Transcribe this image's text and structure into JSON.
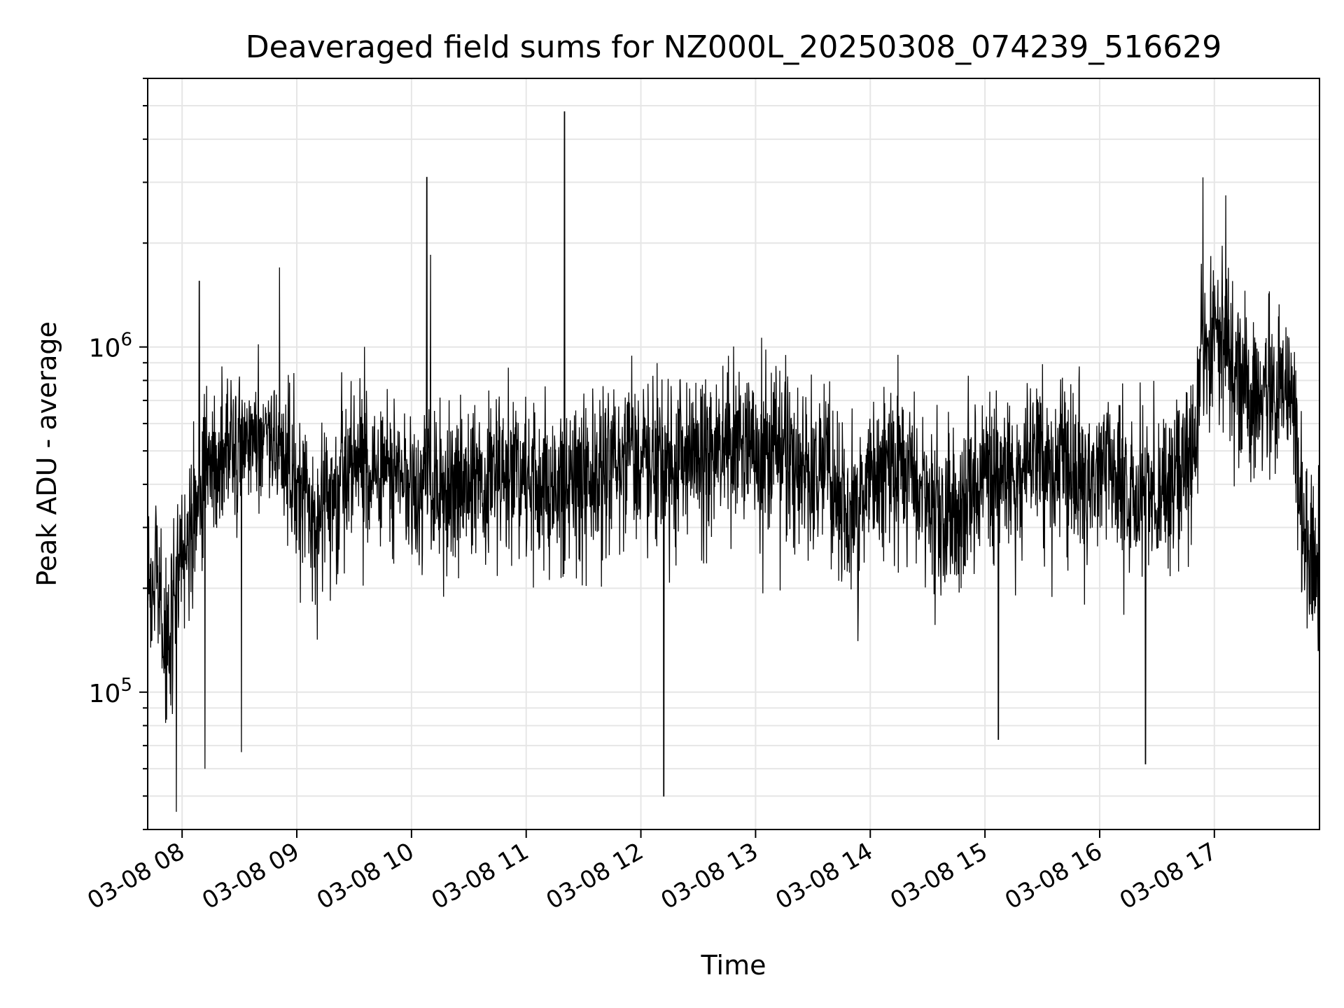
{
  "chart_data": {
    "type": "line",
    "title": "Deaveraged field sums for NZ000L_20250308_074239_516629",
    "xlabel": "Time",
    "ylabel": "Peak ADU - average",
    "y_scale": "log",
    "ylim": [
      40000,
      6000000
    ],
    "xlim": [
      "2025-03-08 07:42",
      "2025-03-08 17:55"
    ],
    "x_ticks": [
      "03-08 08",
      "03-08 09",
      "03-08 10",
      "03-08 11",
      "03-08 12",
      "03-08 13",
      "03-08 14",
      "03-08 15",
      "03-08 16",
      "03-08 17"
    ],
    "y_ticks": [
      {
        "value": 100000,
        "base": "10",
        "exp": "5"
      },
      {
        "value": 1000000,
        "base": "10",
        "exp": "6"
      }
    ],
    "grid": true,
    "line_color": "#000000",
    "grid_color": "#e6e6e6",
    "series": [
      {
        "points": [
          [
            "2025-03-08 07:42",
            250000
          ],
          [
            "2025-03-08 07:48",
            200000
          ],
          [
            "2025-03-08 07:52",
            130000
          ],
          [
            "2025-03-08 07:56",
            190000
          ],
          [
            "2025-03-08 08:00",
            280000
          ],
          [
            "2025-03-08 08:10",
            380000
          ],
          [
            "2025-03-08 08:20",
            480000
          ],
          [
            "2025-03-08 08:30",
            540000
          ],
          [
            "2025-03-08 08:40",
            560000
          ],
          [
            "2025-03-08 08:50",
            520000
          ],
          [
            "2025-03-08 09:00",
            420000
          ],
          [
            "2025-03-08 09:10",
            300000
          ],
          [
            "2025-03-08 09:20",
            380000
          ],
          [
            "2025-03-08 09:30",
            440000
          ],
          [
            "2025-03-08 09:40",
            470000
          ],
          [
            "2025-03-08 09:50",
            450000
          ],
          [
            "2025-03-08 10:00",
            380000
          ],
          [
            "2025-03-08 10:10",
            400000
          ],
          [
            "2025-03-08 10:20",
            370000
          ],
          [
            "2025-03-08 10:30",
            390000
          ],
          [
            "2025-03-08 10:40",
            430000
          ],
          [
            "2025-03-08 10:50",
            440000
          ],
          [
            "2025-03-08 11:00",
            420000
          ],
          [
            "2025-03-08 11:10",
            400000
          ],
          [
            "2025-03-08 11:20",
            380000
          ],
          [
            "2025-03-08 11:30",
            410000
          ],
          [
            "2025-03-08 11:40",
            440000
          ],
          [
            "2025-03-08 11:50",
            460000
          ],
          [
            "2025-03-08 12:00",
            470000
          ],
          [
            "2025-03-08 12:10",
            460000
          ],
          [
            "2025-03-08 12:20",
            450000
          ],
          [
            "2025-03-08 12:30",
            480000
          ],
          [
            "2025-03-08 12:40",
            500000
          ],
          [
            "2025-03-08 12:50",
            510000
          ],
          [
            "2025-03-08 13:00",
            500000
          ],
          [
            "2025-03-08 13:10",
            480000
          ],
          [
            "2025-03-08 13:20",
            460000
          ],
          [
            "2025-03-08 13:30",
            440000
          ],
          [
            "2025-03-08 13:40",
            400000
          ],
          [
            "2025-03-08 13:50",
            300000
          ],
          [
            "2025-03-08 14:00",
            420000
          ],
          [
            "2025-03-08 14:10",
            440000
          ],
          [
            "2025-03-08 14:20",
            430000
          ],
          [
            "2025-03-08 14:30",
            370000
          ],
          [
            "2025-03-08 14:40",
            300000
          ],
          [
            "2025-03-08 14:50",
            390000
          ],
          [
            "2025-03-08 15:00",
            420000
          ],
          [
            "2025-03-08 15:10",
            430000
          ],
          [
            "2025-03-08 15:20",
            460000
          ],
          [
            "2025-03-08 15:30",
            470000
          ],
          [
            "2025-03-08 15:40",
            420000
          ],
          [
            "2025-03-08 15:50",
            400000
          ],
          [
            "2025-03-08 16:00",
            440000
          ],
          [
            "2025-03-08 16:10",
            410000
          ],
          [
            "2025-03-08 16:20",
            360000
          ],
          [
            "2025-03-08 16:30",
            340000
          ],
          [
            "2025-03-08 16:40",
            420000
          ],
          [
            "2025-03-08 16:50",
            480000
          ],
          [
            "2025-03-08 16:53",
            1000000
          ],
          [
            "2025-03-08 17:00",
            1050000
          ],
          [
            "2025-03-08 17:10",
            850000
          ],
          [
            "2025-03-08 17:20",
            760000
          ],
          [
            "2025-03-08 17:30",
            700000
          ],
          [
            "2025-03-08 17:40",
            820000
          ],
          [
            "2025-03-08 17:45",
            350000
          ],
          [
            "2025-03-08 17:50",
            250000
          ],
          [
            "2025-03-08 17:55",
            200000
          ]
        ]
      }
    ],
    "spikes": [
      [
        "2025-03-08 07:57",
        45000
      ],
      [
        "2025-03-08 08:09",
        1550000
      ],
      [
        "2025-03-08 08:12",
        60000
      ],
      [
        "2025-03-08 08:31",
        67000
      ],
      [
        "2025-03-08 08:51",
        1700000
      ],
      [
        "2025-03-08 10:08",
        3100000
      ],
      [
        "2025-03-08 10:10",
        1850000
      ],
      [
        "2025-03-08 11:20",
        4800000
      ],
      [
        "2025-03-08 12:12",
        50000
      ],
      [
        "2025-03-08 15:07",
        73000
      ],
      [
        "2025-03-08 16:24",
        62000
      ],
      [
        "2025-03-08 16:54",
        3100000
      ],
      [
        "2025-03-08 17:06",
        2750000
      ]
    ]
  }
}
